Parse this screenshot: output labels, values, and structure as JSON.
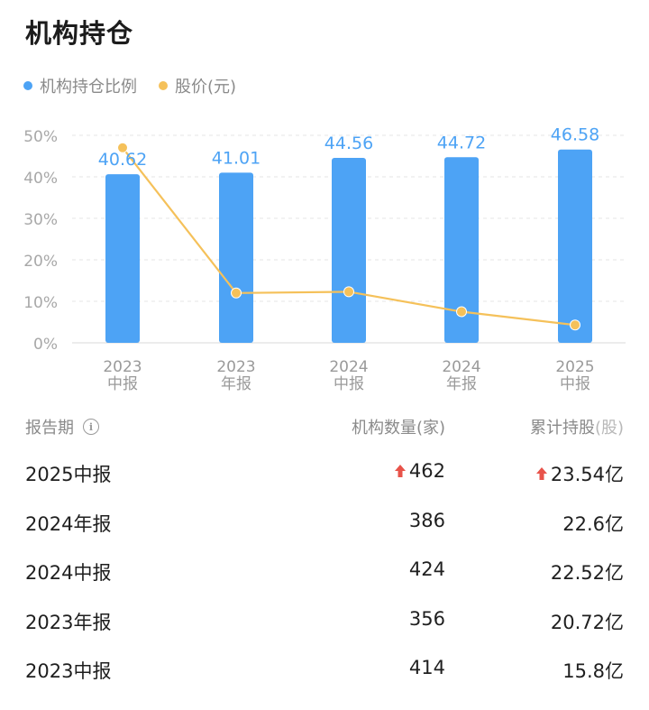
{
  "header": {
    "title": "机构持仓"
  },
  "legend": [
    {
      "label": "机构持仓比例",
      "color": "#4DA3F5"
    },
    {
      "label": "股价(元)",
      "color": "#F5C15A"
    }
  ],
  "chart_data": {
    "type": "bar+line",
    "categories": [
      [
        "2023",
        "中报"
      ],
      [
        "2023",
        "年报"
      ],
      [
        "2024",
        "中报"
      ],
      [
        "2024",
        "年报"
      ],
      [
        "2025",
        "中报"
      ]
    ],
    "series": [
      {
        "name": "机构持仓比例",
        "type": "bar",
        "color": "#4DA3F5",
        "values": [
          40.62,
          41.01,
          44.56,
          44.72,
          46.58
        ],
        "labels": [
          "40.62",
          "41.01",
          "44.56",
          "44.72",
          "46.58"
        ]
      },
      {
        "name": "股价(元)",
        "type": "line",
        "color": "#F5C15A",
        "values": [
          47.0,
          12.0,
          12.3,
          7.5,
          4.3
        ]
      }
    ],
    "y_ticks": [
      "0%",
      "10%",
      "20%",
      "30%",
      "40%",
      "50%"
    ],
    "ylim": [
      0,
      50
    ],
    "grid": true
  },
  "table": {
    "headers": {
      "period": "报告期",
      "count": "机构数量(家)",
      "shares_main": "累计持股",
      "shares_unit": "(股)"
    },
    "rows": [
      {
        "period": "2025中报",
        "count": "462",
        "shares": "23.54亿",
        "up": true
      },
      {
        "period": "2024年报",
        "count": "386",
        "shares": "22.6亿",
        "up": false
      },
      {
        "period": "2024中报",
        "count": "424",
        "shares": "22.52亿",
        "up": false
      },
      {
        "period": "2023年报",
        "count": "356",
        "shares": "20.72亿",
        "up": false
      },
      {
        "period": "2023中报",
        "count": "414",
        "shares": "15.8亿",
        "up": false
      }
    ]
  }
}
